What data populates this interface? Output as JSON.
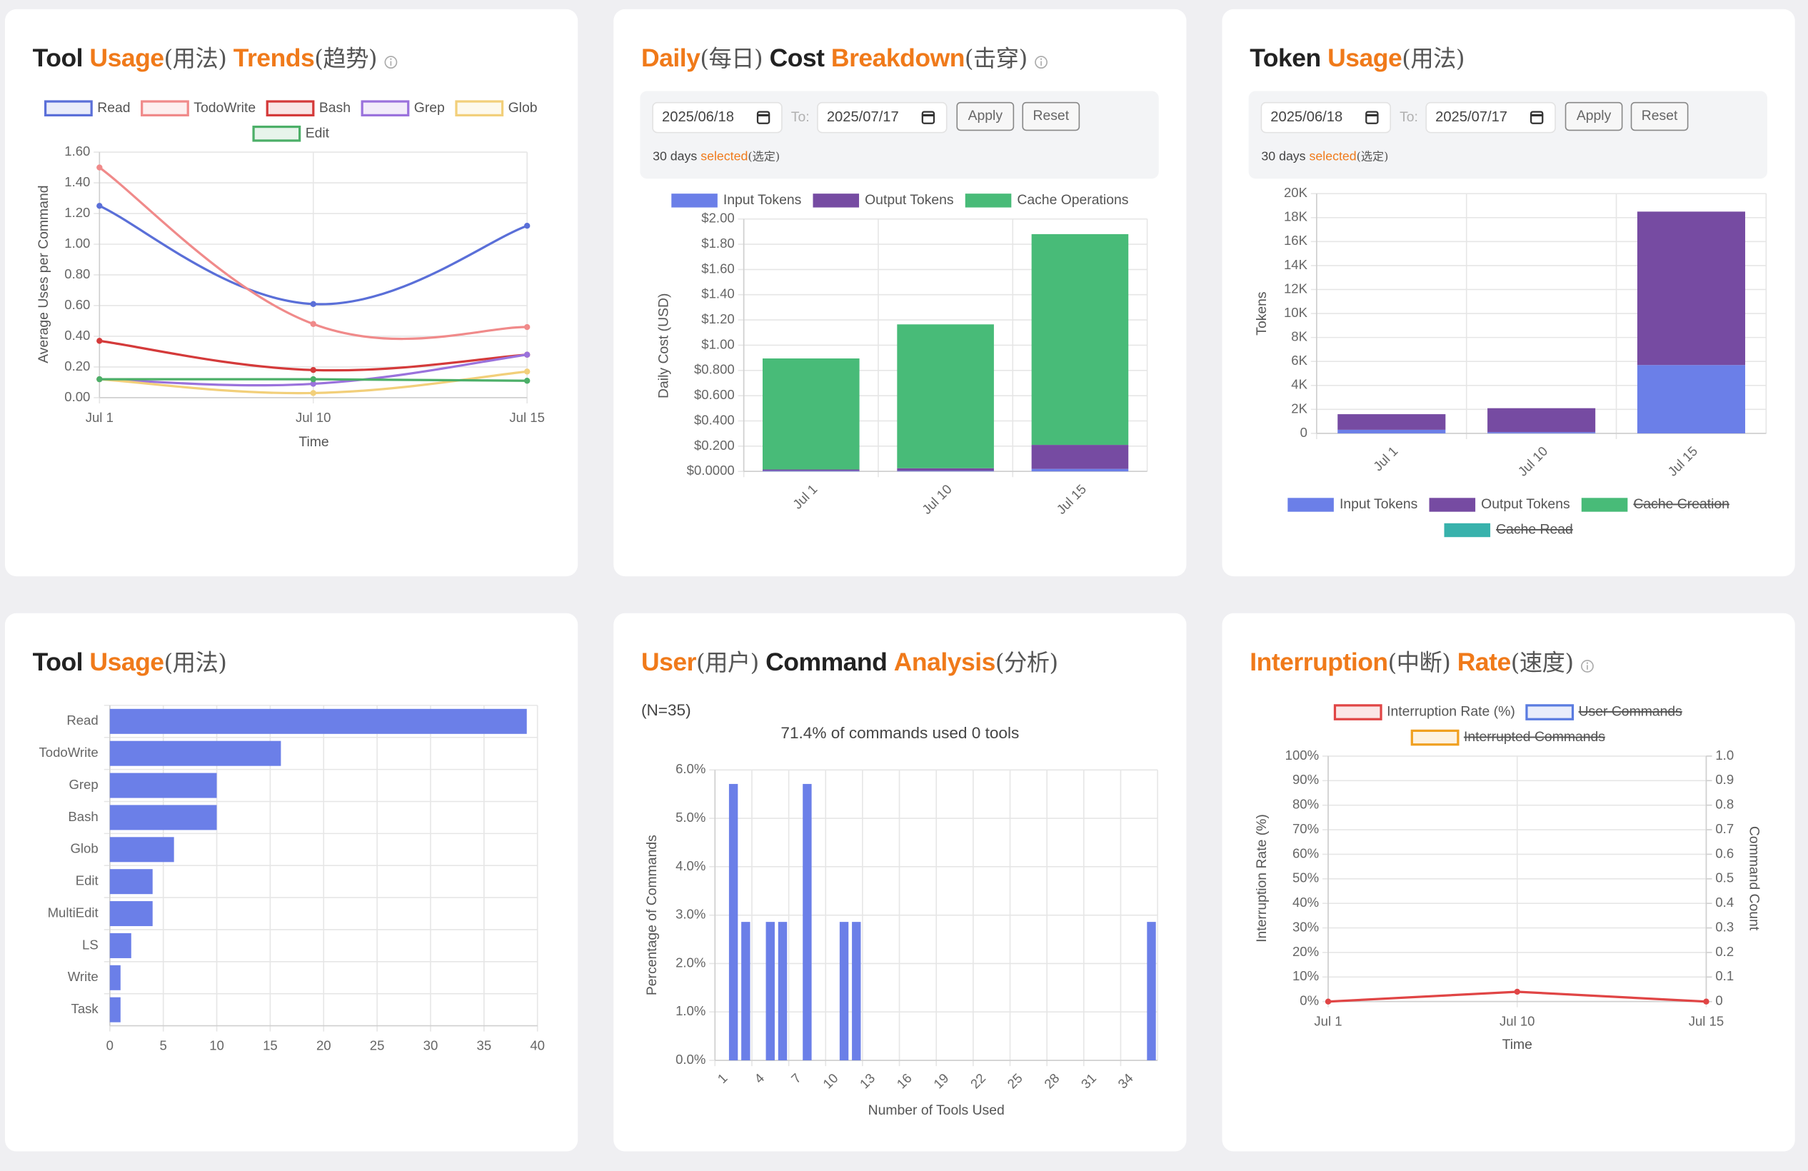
{
  "chart_data": [
    {
      "type": "line",
      "title": "Tool Usage(用法) Trends(趋势)",
      "legend": "top",
      "grid": true,
      "smooth": true,
      "categories": [
        "Jul 1",
        "Jul 10",
        "Jul 15"
      ],
      "series": [
        {
          "name": "Read",
          "color": "#5a6fd8",
          "values": [
            1.25,
            0.61,
            1.12
          ]
        },
        {
          "name": "TodoWrite",
          "color": "#f08a8a",
          "values": [
            1.5,
            0.48,
            0.46
          ]
        },
        {
          "name": "Bash",
          "color": "#d43a3a",
          "values": [
            0.37,
            0.18,
            0.28
          ]
        },
        {
          "name": "Grep",
          "color": "#9a72dc",
          "values": [
            0.12,
            0.09,
            0.28
          ]
        },
        {
          "name": "Glob",
          "color": "#f2cf7a",
          "values": [
            0.12,
            0.03,
            0.17
          ]
        },
        {
          "name": "Edit",
          "color": "#4caf68",
          "values": [
            0.12,
            0.12,
            0.11
          ]
        }
      ],
      "ylim": [
        0,
        1.6
      ],
      "yticks": [
        {
          "value": 0,
          "label": "0.00"
        },
        {
          "value": 0.2,
          "label": "0.20"
        },
        {
          "value": 0.4,
          "label": "0.40"
        },
        {
          "value": 0.6,
          "label": "0.60"
        },
        {
          "value": 0.8,
          "label": "0.80"
        },
        {
          "value": 1,
          "label": "1.00"
        },
        {
          "value": 1.2,
          "label": "1.20"
        },
        {
          "value": 1.4,
          "label": "1.40"
        },
        {
          "value": 1.6,
          "label": "1.60"
        }
      ],
      "ylabel": "Average Uses per Command",
      "xlabel": "Time"
    },
    {
      "type": "bar",
      "stacked": true,
      "title": "Daily(每日) Cost Breakdown(击穿)",
      "legend": "top",
      "grid": true,
      "date_range": {
        "from": "2025/06/18",
        "to_label": "To:",
        "to": "2025/07/17",
        "apply": "Apply",
        "reset": "Reset",
        "summary": "30 days selected(选定)"
      },
      "categories": [
        "Jul 1",
        "Jul 10",
        "Jul 15"
      ],
      "series": [
        {
          "name": "Input Tokens",
          "color": "#6b7fe8",
          "values": [
            0.005,
            0.005,
            0.02
          ]
        },
        {
          "name": "Output Tokens",
          "color": "#764ba2",
          "values": [
            0.01,
            0.02,
            0.19
          ]
        },
        {
          "name": "Cache Operations",
          "color": "#48bb78",
          "values": [
            0.88,
            1.14,
            1.67
          ]
        }
      ],
      "ylim": [
        0,
        2
      ],
      "yticks": [
        {
          "value": 0,
          "label": "$0.0000"
        },
        {
          "value": 0.2,
          "label": "$0.200"
        },
        {
          "value": 0.4,
          "label": "$0.400"
        },
        {
          "value": 0.6,
          "label": "$0.600"
        },
        {
          "value": 0.8,
          "label": "$0.800"
        },
        {
          "value": 1,
          "label": "$1.00"
        },
        {
          "value": 1.2,
          "label": "$1.20"
        },
        {
          "value": 1.4,
          "label": "$1.40"
        },
        {
          "value": 1.6,
          "label": "$1.60"
        },
        {
          "value": 1.8,
          "label": "$1.80"
        },
        {
          "value": 2,
          "label": "$2.00"
        }
      ],
      "ylabel": "Daily Cost (USD)"
    },
    {
      "type": "bar",
      "stacked": true,
      "title": "Token Usage(用法)",
      "legend": "bottom",
      "grid": true,
      "date_range": {
        "from": "2025/06/18",
        "to_label": "To:",
        "to": "2025/07/17",
        "apply": "Apply",
        "reset": "Reset",
        "summary": "30 days selected(选定)"
      },
      "categories": [
        "Jul 1",
        "Jul 10",
        "Jul 15"
      ],
      "series": [
        {
          "name": "Input Tokens",
          "color": "#6b7fe8",
          "values": [
            300,
            100,
            5700
          ]
        },
        {
          "name": "Output Tokens",
          "color": "#764ba2",
          "values": [
            1300,
            2000,
            12800
          ]
        },
        {
          "name": "Cache Creation",
          "color": "#48bb78",
          "hidden": true,
          "values": [
            null,
            null,
            null
          ]
        },
        {
          "name": "Cache Read",
          "color": "#38b2ac",
          "hidden": true,
          "values": [
            null,
            null,
            null
          ]
        }
      ],
      "ylim": [
        0,
        20000
      ],
      "yticks": [
        0,
        {
          "value": 2000,
          "label": "2K"
        },
        {
          "value": 4000,
          "label": "4K"
        },
        {
          "value": 6000,
          "label": "6K"
        },
        {
          "value": 8000,
          "label": "8K"
        },
        {
          "value": 10000,
          "label": "10K"
        },
        {
          "value": 12000,
          "label": "12K"
        },
        {
          "value": 14000,
          "label": "14K"
        },
        {
          "value": 16000,
          "label": "16K"
        },
        {
          "value": 18000,
          "label": "18K"
        },
        {
          "value": 20000,
          "label": "20K"
        }
      ],
      "ylabel": "Tokens"
    },
    {
      "type": "bar",
      "orientation": "horizontal",
      "title": "Tool Usage(用法)",
      "grid": true,
      "color": "#6b7fe8",
      "categories": [
        "Read",
        "TodoWrite",
        "Grep",
        "Bash",
        "Glob",
        "Edit",
        "MultiEdit",
        "LS",
        "Write",
        "Task"
      ],
      "values": [
        39,
        16,
        10,
        10,
        6,
        4,
        4,
        2,
        1,
        1
      ],
      "xlim": [
        0,
        40
      ],
      "xticks": [
        0,
        5,
        10,
        15,
        20,
        25,
        30,
        35,
        40
      ]
    },
    {
      "type": "bar",
      "title": "User(用户) Command Analysis(分析)",
      "subtitle": "(N=35)",
      "annotation": "71.4% of commands used 0 tools",
      "grid": true,
      "color": "#6b7fe8",
      "categories": [
        1,
        null,
        null,
        4,
        null,
        null,
        7,
        null,
        null,
        10,
        null,
        null,
        13,
        null,
        null,
        16,
        null,
        null,
        19,
        null,
        null,
        22,
        null,
        null,
        25,
        null,
        null,
        28,
        null,
        null,
        31,
        null,
        null,
        34,
        null,
        null
      ],
      "values": [
        0,
        5.71,
        2.86,
        0,
        2.86,
        2.86,
        0,
        5.71,
        0,
        0,
        2.86,
        2.86,
        0,
        0,
        0,
        0,
        0,
        0,
        0,
        0,
        0,
        0,
        0,
        0,
        0,
        0,
        0,
        0,
        0,
        0,
        0,
        0,
        0,
        0,
        0,
        2.86
      ],
      "ylim": [
        0,
        6
      ],
      "yticks": [
        {
          "value": 0,
          "label": "0.0%"
        },
        {
          "value": 1,
          "label": "1.0%"
        },
        {
          "value": 2,
          "label": "2.0%"
        },
        {
          "value": 3,
          "label": "3.0%"
        },
        {
          "value": 4,
          "label": "4.0%"
        },
        {
          "value": 5,
          "label": "5.0%"
        },
        {
          "value": 6,
          "label": "6.0%"
        }
      ],
      "ylabel": "Percentage of Commands",
      "xlabel": "Number of Tools Used"
    },
    {
      "type": "line",
      "title": "Interruption(中断) Rate(速度)",
      "legend": "top",
      "grid": true,
      "smooth": false,
      "categories": [
        "Jul 1",
        "Jul 10",
        "Jul 15"
      ],
      "series": [
        {
          "name": "Interruption Rate (%)",
          "color": "#e04545",
          "values": [
            0,
            4,
            0
          ]
        },
        {
          "name": "User Commands",
          "color": "#5a7be0",
          "hidden": true,
          "axis": "y2",
          "values": [
            null,
            null,
            null
          ]
        },
        {
          "name": "Interrupted Commands",
          "color": "#f0a020",
          "hidden": true,
          "axis": "y2",
          "values": [
            null,
            null,
            null
          ]
        }
      ],
      "ylim": [
        0,
        100
      ],
      "yticks": [
        {
          "value": 0,
          "label": "0%"
        },
        {
          "value": 10,
          "label": "10%"
        },
        {
          "value": 20,
          "label": "20%"
        },
        {
          "value": 30,
          "label": "30%"
        },
        {
          "value": 40,
          "label": "40%"
        },
        {
          "value": 50,
          "label": "50%"
        },
        {
          "value": 60,
          "label": "60%"
        },
        {
          "value": 70,
          "label": "70%"
        },
        {
          "value": 80,
          "label": "80%"
        },
        {
          "value": 90,
          "label": "90%"
        },
        {
          "value": 100,
          "label": "100%"
        }
      ],
      "y2lim": [
        0,
        1
      ],
      "y2ticks": [
        0,
        0.1,
        0.2,
        0.3,
        0.4,
        0.5,
        0.6,
        0.7,
        0.8,
        0.9,
        {
          "value": 1,
          "label": "1.0"
        }
      ],
      "ylabel": "Interruption Rate (%)",
      "y2label": "Command Count",
      "xlabel": "Time"
    }
  ]
}
